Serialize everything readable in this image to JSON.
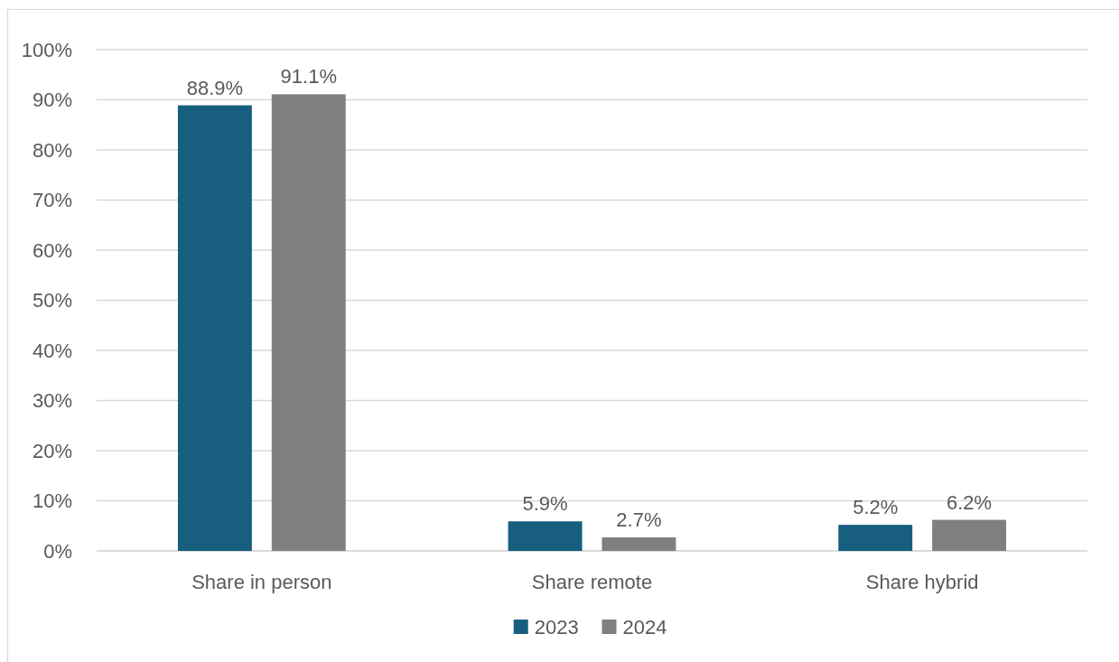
{
  "chart_data": {
    "type": "bar",
    "categories": [
      "Share in person",
      "Share remote",
      "Share hybrid"
    ],
    "series": [
      {
        "name": "2023",
        "color": "#175e7f",
        "values": [
          88.9,
          5.9,
          5.2
        ],
        "value_labels": [
          "88.9%",
          "5.9%",
          "5.2%"
        ]
      },
      {
        "name": "2024",
        "color": "#7f7f7f",
        "values": [
          91.1,
          2.7,
          6.2
        ],
        "value_labels": [
          "91.1%",
          "2.7%",
          "6.2%"
        ]
      }
    ],
    "ylim": [
      0,
      100
    ],
    "yticks": [
      {
        "value": 0,
        "label": "0%"
      },
      {
        "value": 10,
        "label": "10%"
      },
      {
        "value": 20,
        "label": "20%"
      },
      {
        "value": 30,
        "label": "30%"
      },
      {
        "value": 40,
        "label": "40%"
      },
      {
        "value": 50,
        "label": "50%"
      },
      {
        "value": 60,
        "label": "60%"
      },
      {
        "value": 70,
        "label": "70%"
      },
      {
        "value": 80,
        "label": "80%"
      },
      {
        "value": 90,
        "label": "90%"
      },
      {
        "value": 100,
        "label": "100%"
      }
    ],
    "grid": "y",
    "legend": "bottom"
  }
}
